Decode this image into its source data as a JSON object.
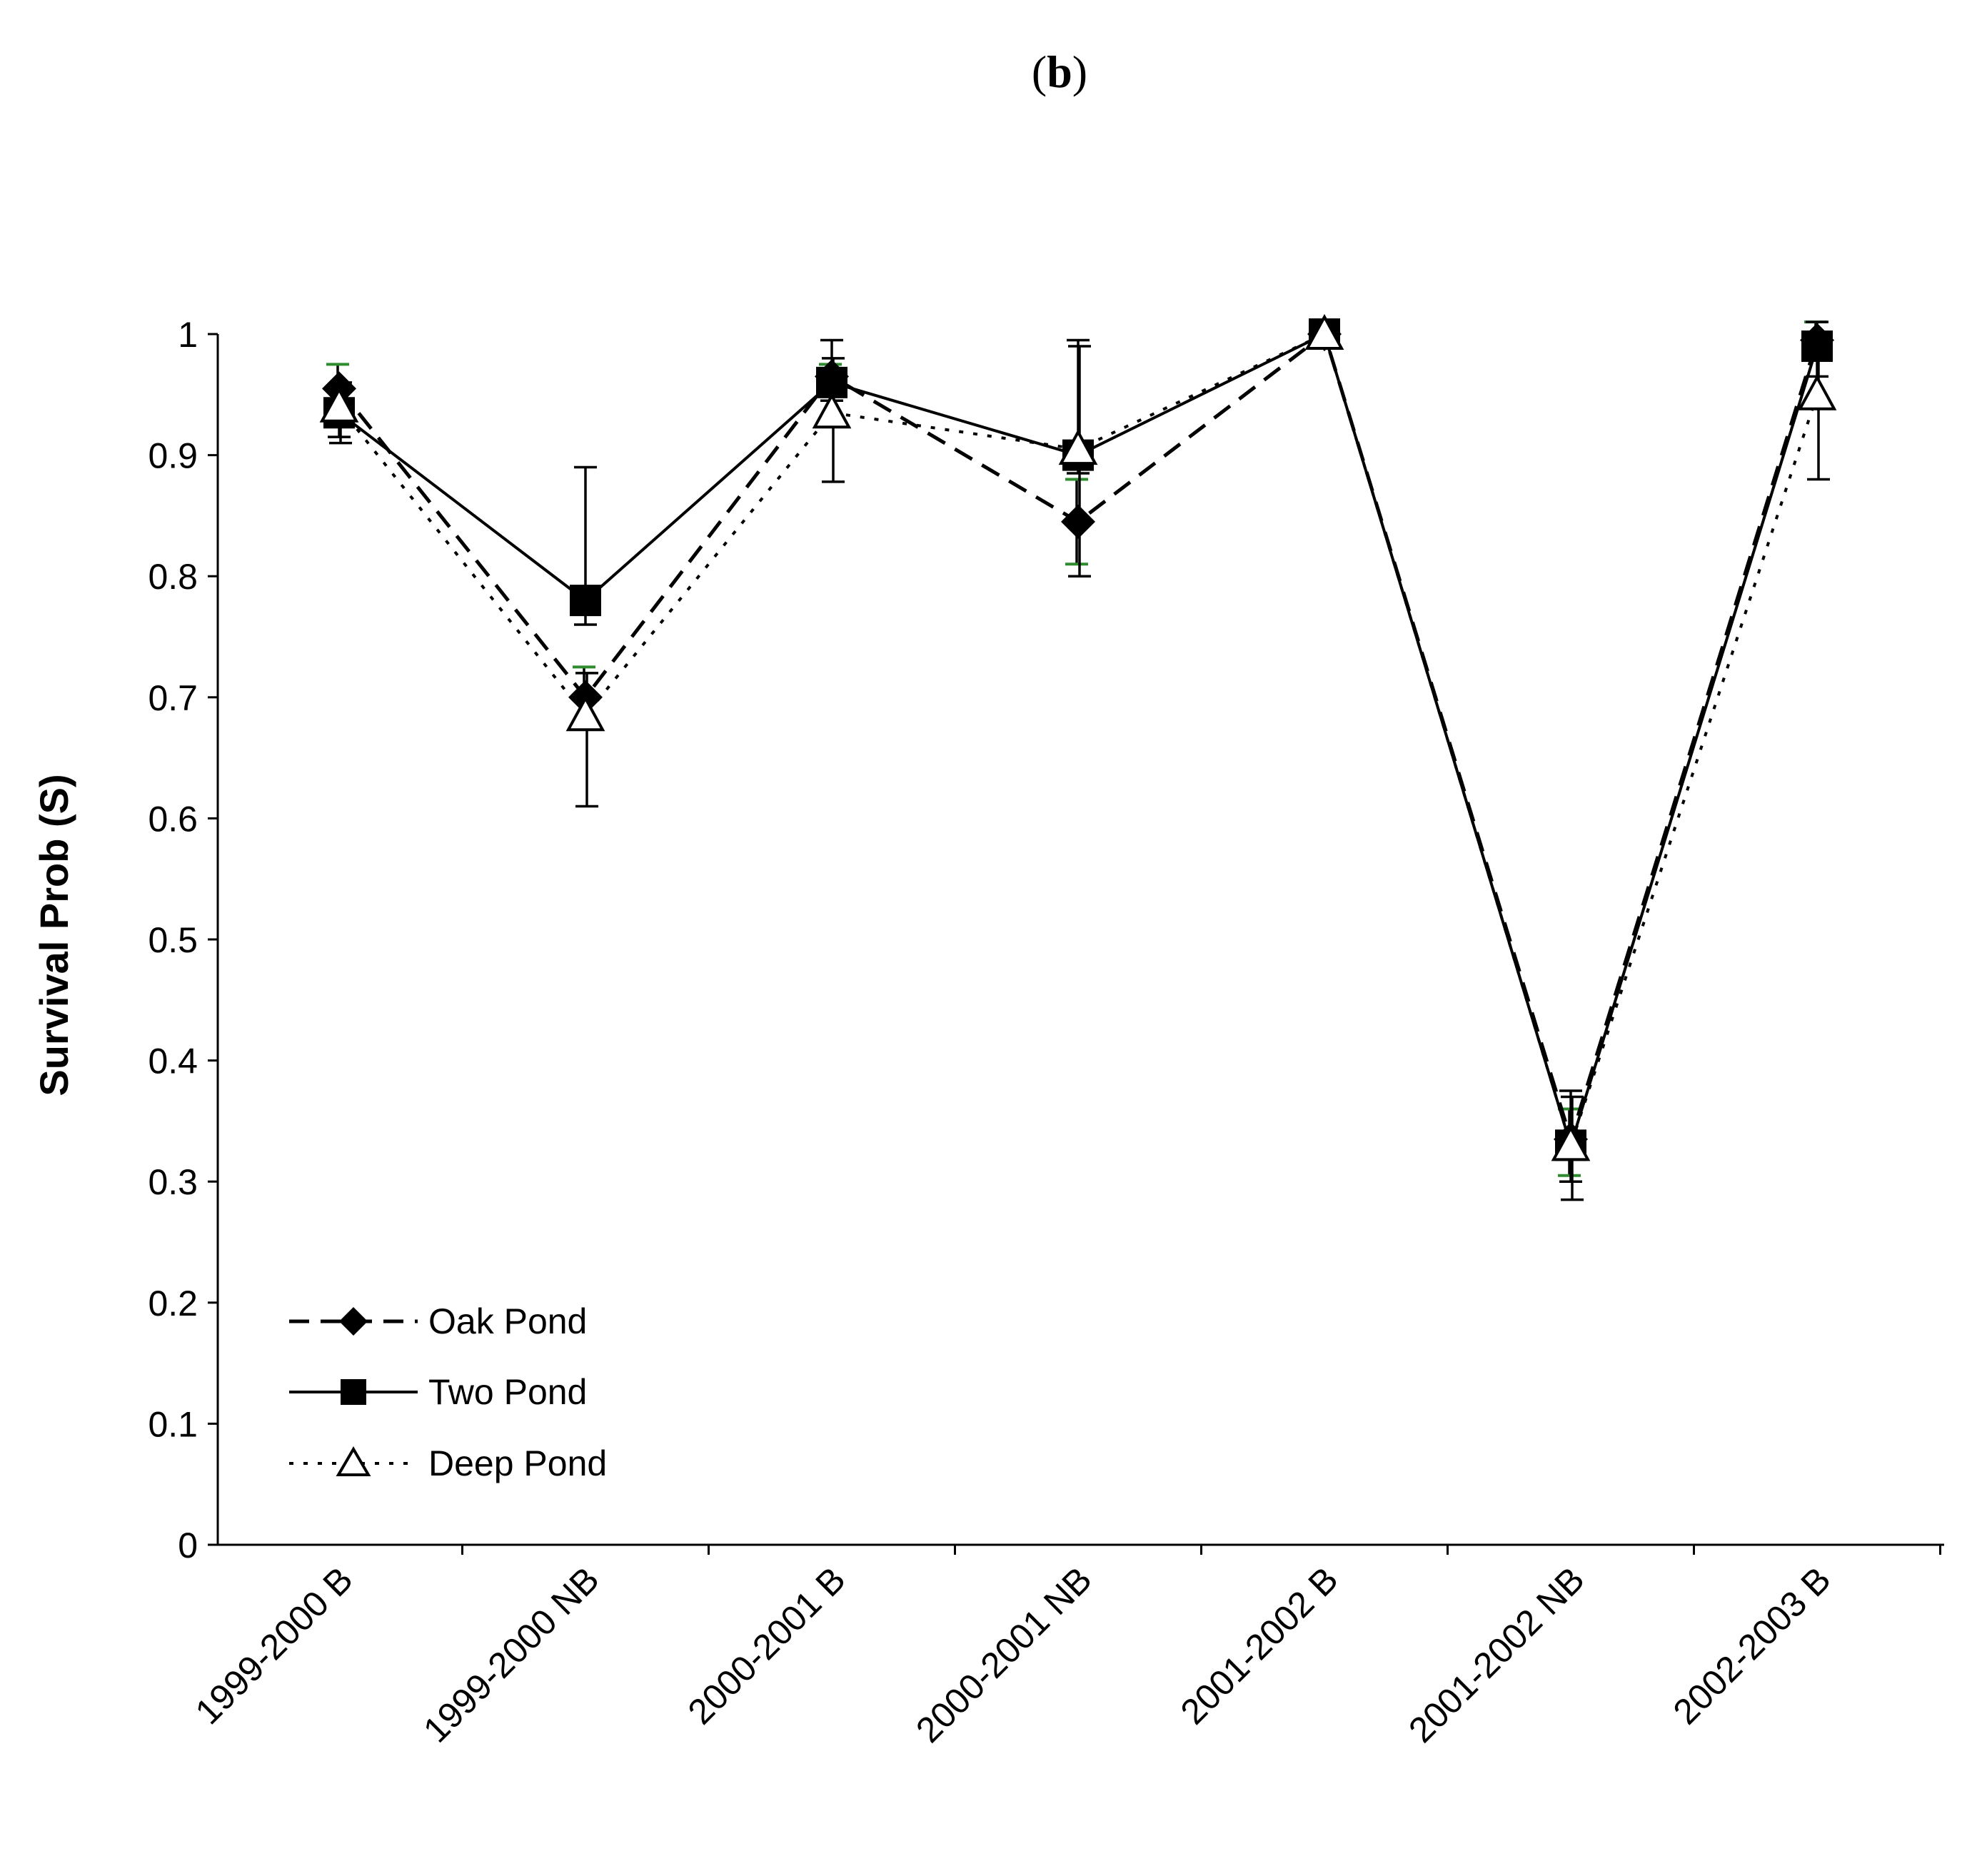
{
  "chart_data": {
    "type": "line",
    "panel_label": {
      "open": "(",
      "letter": "b",
      "close": ")"
    },
    "title": "",
    "xlabel": "",
    "ylabel": "Survival Prob (S)",
    "ylim": [
      0,
      1
    ],
    "yticks": [
      0,
      0.1,
      0.2,
      0.3,
      0.4,
      0.5,
      0.6,
      0.7,
      0.8,
      0.9,
      1
    ],
    "ytick_labels": [
      "0",
      "0.1",
      "0.2",
      "0.3",
      "0.4",
      "0.5",
      "0.6",
      "0.7",
      "0.8",
      "0.9",
      "1"
    ],
    "categories": [
      "1999-2000 B",
      "1999-2000 NB",
      "2000-2001 B",
      "2000-2001 NB",
      "2001-2002 B",
      "2001-2002 NB",
      "2002-2003 B"
    ],
    "legend_position": "bottom-left",
    "series": [
      {
        "name": "Oak Pond",
        "line_style": "dashed",
        "marker": "diamond",
        "values": [
          0.955,
          0.7,
          0.965,
          0.845,
          1.0,
          0.335,
          0.995
        ],
        "error_low": [
          0.935,
          0.675,
          0.955,
          0.81,
          1.0,
          0.305,
          0.985
        ],
        "error_high": [
          0.975,
          0.725,
          0.975,
          0.88,
          1.0,
          0.36,
          1.01
        ]
      },
      {
        "name": "Two Pond",
        "line_style": "solid",
        "marker": "square",
        "values": [
          0.935,
          0.78,
          0.96,
          0.9,
          1.0,
          0.33,
          0.99
        ],
        "error_low": [
          0.915,
          0.76,
          0.945,
          0.885,
          1.0,
          0.3,
          0.965
        ],
        "error_high": [
          0.955,
          0.89,
          0.995,
          0.995,
          1.0,
          0.375,
          1.01
        ]
      },
      {
        "name": "Deep Pond",
        "line_style": "dotted",
        "marker": "triangle-open",
        "values": [
          0.94,
          0.685,
          0.935,
          0.905,
          1.0,
          0.33,
          0.95
        ],
        "error_low": [
          0.91,
          0.61,
          0.878,
          0.8,
          1.0,
          0.285,
          0.88
        ],
        "error_high": [
          0.96,
          0.72,
          0.98,
          0.99,
          1.0,
          0.37,
          1.0
        ]
      }
    ]
  }
}
